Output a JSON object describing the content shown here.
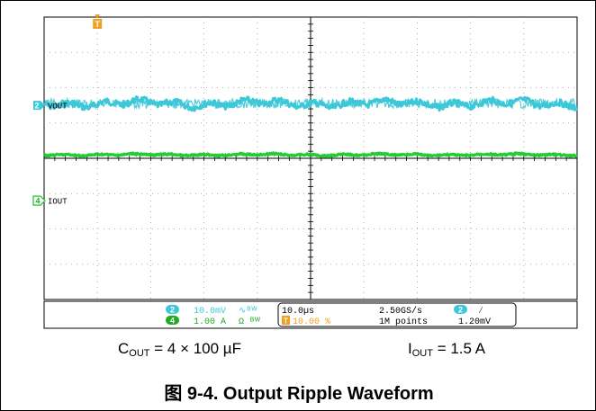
{
  "chart_data": {
    "type": "line",
    "title": "",
    "grid": true,
    "x_divisions": 10,
    "y_divisions": 8,
    "series": [
      {
        "name": "VOUT",
        "channel": "2",
        "color": "#3cc8d8",
        "marker_level_div": 5.5,
        "level_div": 5.55,
        "ripple_pp_div": 0.3
      },
      {
        "name": "IOUT",
        "channel": "4",
        "color": "#22cc33",
        "marker_level_div": 2.8,
        "level_div": 4.1,
        "ripple_pp_div": 0.08
      }
    ],
    "trigger_marker": {
      "label": "T",
      "color": "#f0a020"
    }
  },
  "readout": {
    "ch2_scale": "10.0mV",
    "ch2_coupling": "∿ᴮᵂ",
    "ch4_scale": "1.00 A",
    "ch4_coupling": "Ω ᴮᵂ",
    "timebase": "10.0µs",
    "sample_rate": "2.50GS/s",
    "trigger_pos": "10.00 %",
    "record_length": "1M points",
    "trigger_channel": "2",
    "trigger_slope": "⁄",
    "trigger_level": "1.20mV"
  },
  "conditions": {
    "cout_prefix": "C",
    "cout_sub": "OUT",
    "cout_value": " = 4 × 100 µF",
    "iout_prefix": "I",
    "iout_sub": "OUT",
    "iout_value": " = 1.5 A"
  },
  "caption": "图 9-4. Output Ripple Waveform"
}
